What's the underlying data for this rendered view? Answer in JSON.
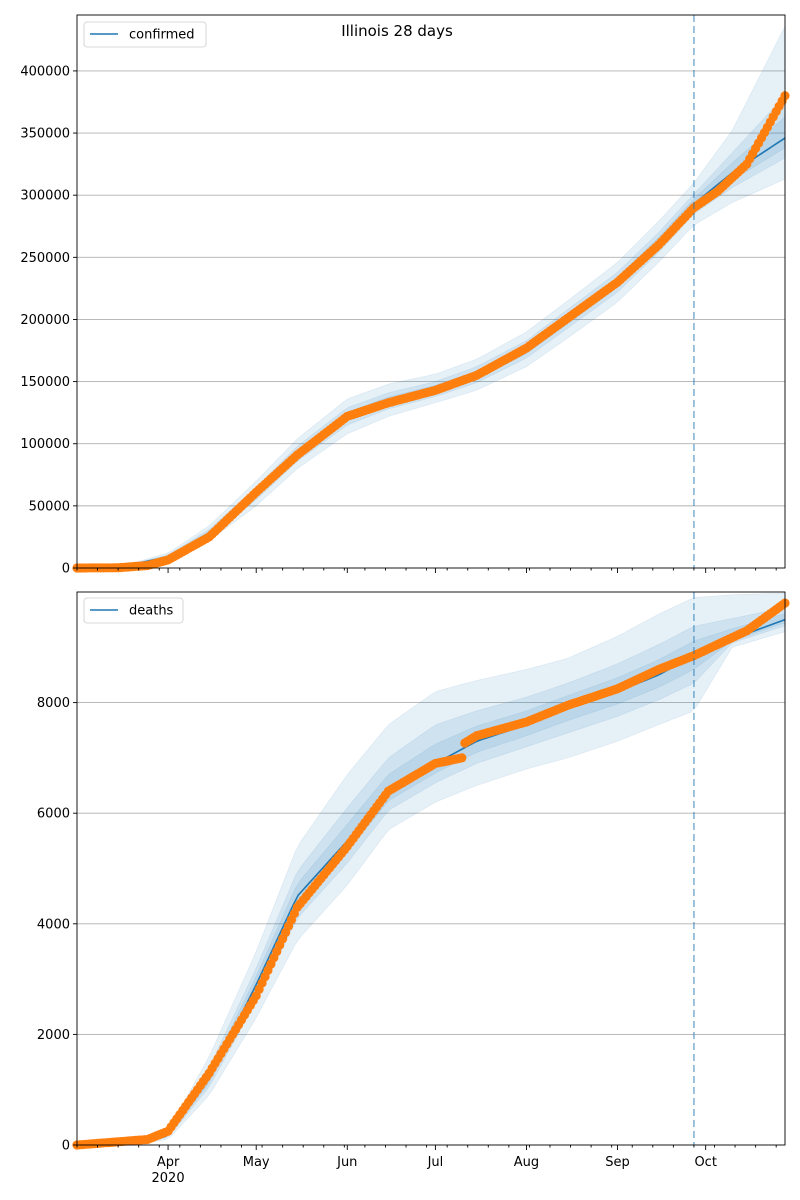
{
  "chart_data": [
    {
      "type": "line",
      "title": "Illinois 28 days",
      "xlabel": "",
      "ylabel": "",
      "x_range": [
        "2020-03-01",
        "2020-10-28"
      ],
      "ylim": [
        0,
        445000
      ],
      "yticks": [
        0,
        50000,
        100000,
        150000,
        200000,
        250000,
        300000,
        350000,
        400000
      ],
      "grid": "horizontal",
      "legend_location": "top-left",
      "forecast_start": "2020-09-27",
      "series": [
        {
          "name": "confirmed",
          "kind": "model-fit",
          "x": [
            "2020-03-01",
            "2020-03-15",
            "2020-04-01",
            "2020-04-15",
            "2020-05-01",
            "2020-05-15",
            "2020-06-01",
            "2020-06-15",
            "2020-07-01",
            "2020-07-15",
            "2020-08-01",
            "2020-08-15",
            "2020-09-01",
            "2020-09-15",
            "2020-09-27",
            "2020-10-10",
            "2020-10-28"
          ],
          "values": [
            0,
            500,
            9000,
            28000,
            60000,
            92000,
            122000,
            134000,
            144000,
            155000,
            176000,
            200000,
            230000,
            262000,
            293000,
            318000,
            346000
          ],
          "band_outer_low": [
            0,
            300,
            6000,
            22000,
            50000,
            80000,
            108000,
            122000,
            133000,
            143000,
            162000,
            185000,
            214000,
            246000,
            276000,
            294000,
            313000
          ],
          "band_outer_high": [
            0,
            800,
            12000,
            34000,
            70000,
            104000,
            136000,
            148000,
            156000,
            168000,
            190000,
            215000,
            246000,
            279000,
            310000,
            352000,
            436000
          ],
          "band_inner_low": [
            0,
            400,
            7500,
            25000,
            55000,
            86000,
            115000,
            128000,
            138000,
            149000,
            169000,
            193000,
            222000,
            254000,
            285000,
            306000,
            330000
          ],
          "band_inner_high": [
            0,
            650,
            10500,
            31000,
            65000,
            98000,
            129000,
            141000,
            150000,
            162000,
            183000,
            208000,
            238000,
            270000,
            301000,
            334000,
            380000
          ]
        },
        {
          "name": "",
          "kind": "observed",
          "x": [
            "2020-03-01",
            "2020-03-15",
            "2020-03-25",
            "2020-04-01",
            "2020-04-15",
            "2020-05-01",
            "2020-05-15",
            "2020-06-01",
            "2020-06-15",
            "2020-07-01",
            "2020-07-15",
            "2020-08-01",
            "2020-08-15",
            "2020-09-01",
            "2020-09-15",
            "2020-09-27",
            "2020-10-05",
            "2020-10-15",
            "2020-10-28"
          ],
          "values": [
            0,
            200,
            2000,
            6500,
            25000,
            61000,
            91000,
            122000,
            133000,
            143000,
            155000,
            177000,
            201000,
            230000,
            260000,
            290000,
            303000,
            325000,
            380000
          ]
        }
      ]
    },
    {
      "type": "line",
      "title": "",
      "xlabel": "",
      "ylabel": "",
      "x_range": [
        "2020-03-01",
        "2020-10-28"
      ],
      "ylim": [
        0,
        10000
      ],
      "yticks": [
        0,
        2000,
        4000,
        6000,
        8000
      ],
      "xtick_labels": [
        "Apr\n2020",
        "May",
        "Jun",
        "Jul",
        "Aug",
        "Sep",
        "Oct"
      ],
      "grid": "horizontal",
      "legend_location": "top-left",
      "forecast_start": "2020-09-27",
      "series": [
        {
          "name": "deaths",
          "kind": "model-fit",
          "x": [
            "2020-03-01",
            "2020-03-20",
            "2020-04-01",
            "2020-04-15",
            "2020-05-01",
            "2020-05-15",
            "2020-06-01",
            "2020-06-15",
            "2020-07-01",
            "2020-07-15",
            "2020-08-01",
            "2020-08-15",
            "2020-09-01",
            "2020-09-15",
            "2020-09-27",
            "2020-10-10",
            "2020-10-28"
          ],
          "values": [
            0,
            10,
            170,
            1200,
            2900,
            4500,
            5500,
            6400,
            6900,
            7300,
            7600,
            7900,
            8200,
            8500,
            8850,
            9150,
            9500
          ],
          "band_outer_low": [
            0,
            5,
            100,
            900,
            2300,
            3700,
            4700,
            5700,
            6200,
            6500,
            6800,
            7000,
            7300,
            7600,
            7850,
            9000,
            9280
          ],
          "band_outer_high": [
            0,
            20,
            260,
            1600,
            3500,
            5400,
            6700,
            7600,
            8200,
            8400,
            8600,
            8800,
            9200,
            9600,
            9900,
            9950,
            9980
          ],
          "band_inner_low": [
            0,
            8,
            140,
            1050,
            2600,
            4100,
            5100,
            6050,
            6550,
            6900,
            7200,
            7450,
            7750,
            8050,
            8350,
            9080,
            9390
          ],
          "band_inner_high": [
            0,
            15,
            210,
            1400,
            3200,
            4950,
            6100,
            7000,
            7600,
            7850,
            8100,
            8350,
            8700,
            9050,
            9380,
            9520,
            9720
          ]
        },
        {
          "name": "",
          "kind": "observed",
          "x": [
            "2020-03-01",
            "2020-03-25",
            "2020-04-01",
            "2020-04-15",
            "2020-05-01",
            "2020-05-15",
            "2020-06-01",
            "2020-06-15",
            "2020-07-01",
            "2020-07-10",
            "2020-07-11",
            "2020-07-15",
            "2020-08-01",
            "2020-08-15",
            "2020-09-01",
            "2020-09-15",
            "2020-09-27",
            "2020-10-15",
            "2020-10-28"
          ],
          "values": [
            0,
            100,
            250,
            1300,
            2700,
            4300,
            5400,
            6400,
            6900,
            7000,
            7270,
            7400,
            7650,
            7950,
            8250,
            8600,
            8850,
            9300,
            9800
          ]
        }
      ]
    }
  ]
}
